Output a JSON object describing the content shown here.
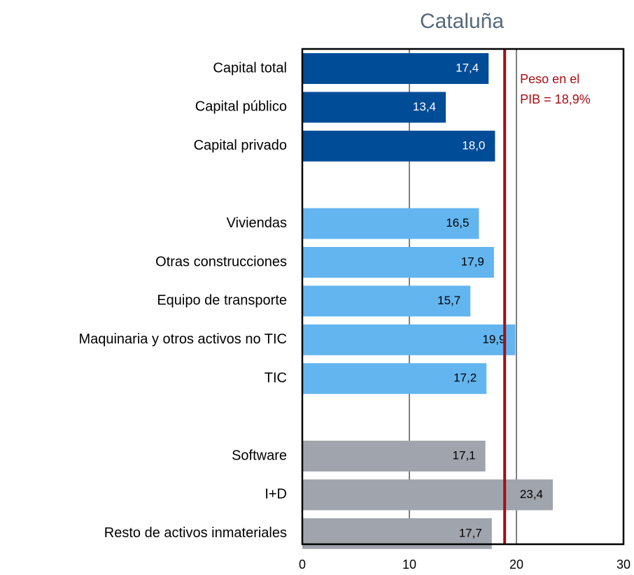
{
  "chart_data": {
    "type": "hbar",
    "title": "Cataluña",
    "categories": [
      "Capital total",
      "Capital público",
      "Capital privado",
      null,
      "Viviendas",
      "Otras construcciones",
      "Equipo de transporte",
      "Maquinaria y otros activos no TIC",
      "TIC",
      null,
      "Software",
      "I+D",
      "Resto de activos inmateriales"
    ],
    "values": [
      17.4,
      13.4,
      18.0,
      null,
      16.5,
      17.9,
      15.7,
      19.9,
      17.2,
      null,
      17.1,
      23.4,
      17.7
    ],
    "value_labels": [
      "17,4",
      "13,4",
      "18,0",
      null,
      "16,5",
      "17,9",
      "15,7",
      "19,9",
      "17,2",
      null,
      "17,1",
      "23,4",
      "17,7"
    ],
    "colors": [
      "#004c97",
      "#004c97",
      "#004c97",
      null,
      "#63b5ef",
      "#63b5ef",
      "#63b5ef",
      "#63b5ef",
      "#63b5ef",
      null,
      "#a0a4ad",
      "#a0a4ad",
      "#a0a4ad"
    ],
    "xlim": [
      0,
      30
    ],
    "xticks": [
      0,
      10,
      20,
      30
    ],
    "grid": true,
    "reference_line": {
      "value": 18.9,
      "color": "#a50f15",
      "label": [
        "Peso en el",
        "PIB = 18,9%"
      ]
    }
  }
}
